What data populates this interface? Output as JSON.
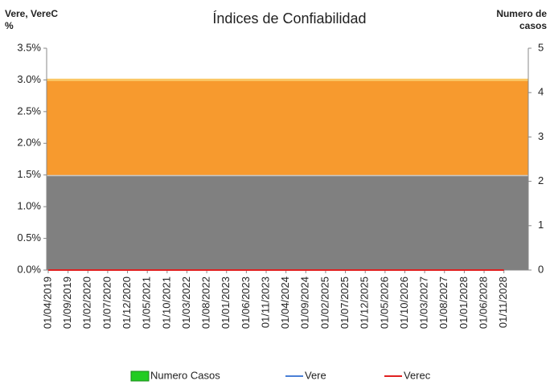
{
  "chart_data": {
    "type": "line",
    "title": "Índices de Confiabilidad",
    "y_label": "Vere, VereC %",
    "y2_label": "Numero de casos",
    "categories": [
      "01/04/2019",
      "01/09/2019",
      "01/02/2020",
      "01/07/2020",
      "01/12/2020",
      "01/05/2021",
      "01/10/2021",
      "01/03/2022",
      "01/08/2022",
      "01/01/2023",
      "01/06/2023",
      "01/11/2023",
      "01/04/2024",
      "01/09/2024",
      "01/02/2025",
      "01/07/2025",
      "01/12/2025",
      "01/05/2026",
      "01/10/2026",
      "01/03/2027",
      "01/08/2027",
      "01/01/2028",
      "01/06/2028",
      "01/11/2028"
    ],
    "areas": [
      {
        "color": "#808080",
        "value": 1.5
      },
      {
        "color": "#f79a2e",
        "value": 1.5
      }
    ],
    "series": [
      {
        "name": "Numero Casos",
        "color": "#22cc22",
        "type": "bar",
        "axis": "y2",
        "values": [
          0,
          0,
          0,
          0,
          0,
          0,
          0,
          0,
          0,
          0,
          0,
          0,
          0,
          0,
          0,
          0,
          0,
          0,
          0,
          0,
          0,
          0,
          0,
          0
        ]
      },
      {
        "name": "Vere",
        "color": "#4a7fd6",
        "values": [
          0,
          0,
          0,
          0,
          0,
          0,
          0,
          0,
          0,
          0,
          0,
          0,
          0,
          0,
          0,
          0,
          0,
          0,
          0,
          0,
          0,
          0,
          0,
          0
        ]
      },
      {
        "name": "Verec",
        "color": "#e02020",
        "values": [
          0,
          0,
          0,
          0,
          0,
          0,
          0,
          0,
          0,
          0,
          0,
          0,
          0,
          0,
          0,
          0,
          0,
          0,
          0,
          0,
          0,
          0,
          0,
          0
        ]
      }
    ],
    "ylim": [
      0,
      3.5
    ],
    "yticks": [
      {
        "value": 0,
        "label": "0.0%"
      },
      {
        "value": 0.5,
        "label": "0.5%"
      },
      {
        "value": 1,
        "label": "1.0%"
      },
      {
        "value": 1.5,
        "label": "1.5%"
      },
      {
        "value": 2,
        "label": "2.0%"
      },
      {
        "value": 2.5,
        "label": "2.5%"
      },
      {
        "value": 3,
        "label": "3.0%"
      },
      {
        "value": 3.5,
        "label": "3.5%"
      }
    ],
    "y2lim": [
      0,
      5
    ],
    "y2ticks": [
      0,
      1,
      2,
      3,
      4,
      5
    ]
  }
}
